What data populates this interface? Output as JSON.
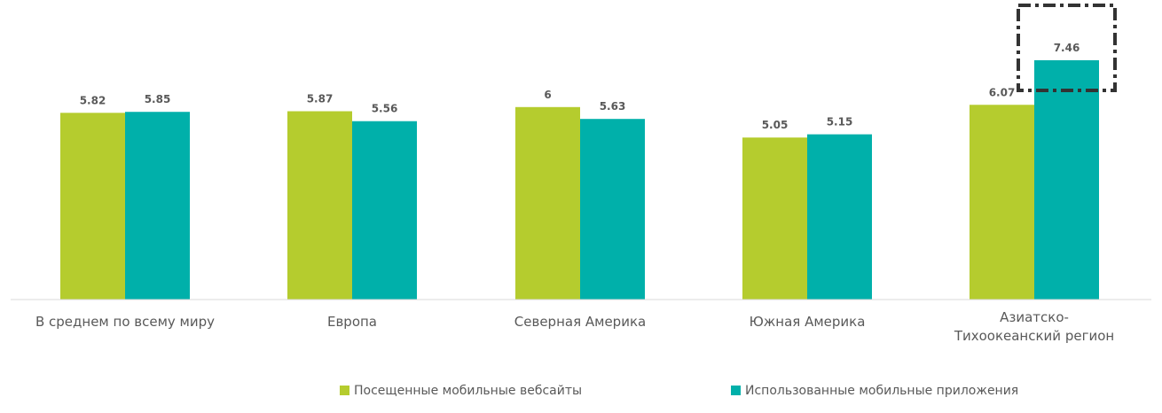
{
  "chart_data": {
    "type": "bar",
    "categories": [
      "В среднем по всему миру",
      "Европа",
      "Северная Америка",
      "Южная Америка",
      "Азиатско-Тихоокеанский регион"
    ],
    "category_lines": [
      [
        "В среднем по всему миру"
      ],
      [
        "Европа"
      ],
      [
        "Северная Америка"
      ],
      [
        "Южная Америка"
      ],
      [
        "Азиатско-",
        "Тихоокеанский регион"
      ]
    ],
    "series": [
      {
        "name": "Посещенные мобильные вебсайты",
        "color": "#b5cc2e",
        "values": [
          5.82,
          5.87,
          6,
          5.05,
          6.07
        ],
        "labels": [
          "5.82",
          "5.87",
          "6",
          "5.05",
          "6.07"
        ]
      },
      {
        "name": "Использованные мобильные приложения",
        "color": "#00b0aa",
        "values": [
          5.85,
          5.56,
          5.63,
          5.15,
          7.46
        ],
        "labels": [
          "5.85",
          "5.56",
          "5.63",
          "5.15",
          "7.46"
        ]
      }
    ],
    "ylim": [
      0,
      8
    ],
    "grid": false,
    "legend_position": "bottom",
    "highlight": {
      "series": 1,
      "category": 4,
      "style": "dash-dot box"
    },
    "axis_color": "#d9d9d9"
  }
}
